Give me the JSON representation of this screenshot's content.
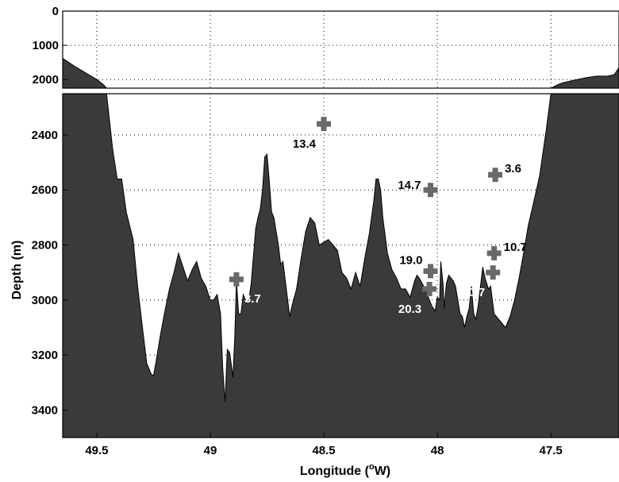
{
  "chart_data": {
    "type": "area",
    "xlabel": "Longitude (",
    "xlabel_sup": "o",
    "xlabel_tail": "W)",
    "ylabel": "Depth (m)",
    "x_reversed": true,
    "xlim": [
      49.65,
      47.2
    ],
    "x_ticks": [
      {
        "value": 49.5,
        "label": "49.5"
      },
      {
        "value": 49.0,
        "label": "49"
      },
      {
        "value": 48.5,
        "label": "48.5"
      },
      {
        "value": 48.0,
        "label": "48"
      },
      {
        "value": 47.5,
        "label": "47.5"
      }
    ],
    "grid": true,
    "panels": [
      {
        "name": "top",
        "ylim": [
          0,
          2250
        ],
        "y_ticks": [
          {
            "value": 0,
            "label": "0"
          },
          {
            "value": 1000,
            "label": "1000"
          },
          {
            "value": 2000,
            "label": "2000"
          }
        ]
      },
      {
        "name": "bottom",
        "ylim": [
          2250,
          3500
        ],
        "y_ticks": [
          {
            "value": 2400,
            "label": "2400"
          },
          {
            "value": 2600,
            "label": "2600"
          },
          {
            "value": 2800,
            "label": "2800"
          },
          {
            "value": 3000,
            "label": "3000"
          },
          {
            "value": 3200,
            "label": "3200"
          },
          {
            "value": 3400,
            "label": "3400"
          }
        ]
      }
    ],
    "bathymetry": [
      [
        49.65,
        1380
      ],
      [
        49.6,
        1600
      ],
      [
        49.55,
        1800
      ],
      [
        49.5,
        2000
      ],
      [
        49.47,
        2150
      ],
      [
        49.45,
        2300
      ],
      [
        49.43,
        2450
      ],
      [
        49.41,
        2560
      ],
      [
        49.39,
        2560
      ],
      [
        49.37,
        2680
      ],
      [
        49.34,
        2780
      ],
      [
        49.32,
        2950
      ],
      [
        49.3,
        3090
      ],
      [
        49.28,
        3230
      ],
      [
        49.26,
        3270
      ],
      [
        49.25,
        3275
      ],
      [
        49.24,
        3230
      ],
      [
        49.22,
        3130
      ],
      [
        49.2,
        3040
      ],
      [
        49.18,
        2960
      ],
      [
        49.16,
        2900
      ],
      [
        49.14,
        2830
      ],
      [
        49.12,
        2880
      ],
      [
        49.1,
        2930
      ],
      [
        49.08,
        2890
      ],
      [
        49.06,
        2860
      ],
      [
        49.04,
        2920
      ],
      [
        49.02,
        2950
      ],
      [
        49.0,
        3000
      ],
      [
        48.985,
        3000
      ],
      [
        48.97,
        2980
      ],
      [
        48.955,
        3050
      ],
      [
        48.945,
        3250
      ],
      [
        48.935,
        3370
      ],
      [
        48.925,
        3180
      ],
      [
        48.915,
        3190
      ],
      [
        48.9,
        3280
      ],
      [
        48.892,
        3130
      ],
      [
        48.885,
        2930
      ],
      [
        48.875,
        3050
      ],
      [
        48.865,
        3050
      ],
      [
        48.855,
        2980
      ],
      [
        48.84,
        3010
      ],
      [
        48.83,
        3000
      ],
      [
        48.82,
        2940
      ],
      [
        48.8,
        2740
      ],
      [
        48.79,
        2700
      ],
      [
        48.78,
        2670
      ],
      [
        48.77,
        2600
      ],
      [
        48.76,
        2480
      ],
      [
        48.75,
        2470
      ],
      [
        48.74,
        2570
      ],
      [
        48.73,
        2680
      ],
      [
        48.72,
        2700
      ],
      [
        48.7,
        2800
      ],
      [
        48.69,
        2870
      ],
      [
        48.68,
        2860
      ],
      [
        48.665,
        2960
      ],
      [
        48.65,
        3060
      ],
      [
        48.64,
        3020
      ],
      [
        48.62,
        2960
      ],
      [
        48.6,
        2850
      ],
      [
        48.58,
        2750
      ],
      [
        48.56,
        2700
      ],
      [
        48.54,
        2720
      ],
      [
        48.52,
        2800
      ],
      [
        48.5,
        2790
      ],
      [
        48.48,
        2780
      ],
      [
        48.46,
        2800
      ],
      [
        48.44,
        2820
      ],
      [
        48.42,
        2900
      ],
      [
        48.4,
        2920
      ],
      [
        48.38,
        2960
      ],
      [
        48.36,
        2900
      ],
      [
        48.34,
        2950
      ],
      [
        48.32,
        2850
      ],
      [
        48.3,
        2760
      ],
      [
        48.28,
        2640
      ],
      [
        48.27,
        2560
      ],
      [
        48.26,
        2560
      ],
      [
        48.25,
        2600
      ],
      [
        48.24,
        2700
      ],
      [
        48.22,
        2830
      ],
      [
        48.2,
        2890
      ],
      [
        48.18,
        2920
      ],
      [
        48.16,
        2960
      ],
      [
        48.14,
        2960
      ],
      [
        48.12,
        2990
      ],
      [
        48.1,
        2930
      ],
      [
        48.09,
        2910
      ],
      [
        48.08,
        2920
      ],
      [
        48.06,
        2950
      ],
      [
        48.04,
        2990
      ],
      [
        48.025,
        3020
      ],
      [
        48.01,
        3040
      ],
      [
        48.0,
        2990
      ],
      [
        47.99,
        3000
      ],
      [
        47.985,
        2860
      ],
      [
        47.975,
        2940
      ],
      [
        47.97,
        3030
      ],
      [
        47.96,
        2940
      ],
      [
        47.95,
        2910
      ],
      [
        47.94,
        2920
      ],
      [
        47.93,
        2930
      ],
      [
        47.92,
        2950
      ],
      [
        47.91,
        3000
      ],
      [
        47.9,
        3050
      ],
      [
        47.89,
        3060
      ],
      [
        47.88,
        3100
      ],
      [
        47.87,
        3060
      ],
      [
        47.86,
        3030
      ],
      [
        47.85,
        2950
      ],
      [
        47.84,
        3050
      ],
      [
        47.83,
        3070
      ],
      [
        47.82,
        3020
      ],
      [
        47.8,
        2880
      ],
      [
        47.79,
        2920
      ],
      [
        47.775,
        2960
      ],
      [
        47.765,
        2950
      ],
      [
        47.75,
        3050
      ],
      [
        47.74,
        3060
      ],
      [
        47.72,
        3080
      ],
      [
        47.7,
        3100
      ],
      [
        47.68,
        3060
      ],
      [
        47.66,
        3000
      ],
      [
        47.64,
        2920
      ],
      [
        47.62,
        2830
      ],
      [
        47.6,
        2730
      ],
      [
        47.58,
        2660
      ],
      [
        47.55,
        2550
      ],
      [
        47.52,
        2380
      ],
      [
        47.5,
        2250
      ],
      [
        47.47,
        2150
      ],
      [
        47.45,
        2100
      ],
      [
        47.4,
        2020
      ],
      [
        47.35,
        1950
      ],
      [
        47.3,
        1900
      ],
      [
        47.25,
        1900
      ],
      [
        47.22,
        1850
      ],
      [
        47.2,
        1650
      ]
    ],
    "points": [
      {
        "x": 48.885,
        "y": 2925,
        "label": "3.7",
        "label_color": "#ffffff",
        "label_pos": "below-right"
      },
      {
        "x": 48.5,
        "y": 2360,
        "label": "13.4",
        "label_color": "#000000",
        "label_pos": "below-left"
      },
      {
        "x": 48.03,
        "y": 2600,
        "label": "14.7",
        "label_color": "#000000",
        "label_pos": "left"
      },
      {
        "x": 48.03,
        "y": 2895,
        "label": "19.0",
        "label_color": "#000000",
        "label_pos": "above-left"
      },
      {
        "x": 48.035,
        "y": 2960,
        "label": "20.3",
        "label_color": "#ffffff",
        "label_pos": "below-left"
      },
      {
        "x": 47.745,
        "y": 2545,
        "label": "3.6",
        "label_color": "#000000",
        "label_pos": "above-right"
      },
      {
        "x": 47.75,
        "y": 2830,
        "label": "10.7",
        "label_color": "#000000",
        "label_pos": "above-right"
      },
      {
        "x": 47.755,
        "y": 2900,
        "label": "10.7",
        "label_color": "#ffffff",
        "label_pos": "below-left"
      }
    ],
    "colors": {
      "seafloor": "#3a3a3a",
      "marker": "#696969",
      "background": "#ffffff"
    }
  }
}
